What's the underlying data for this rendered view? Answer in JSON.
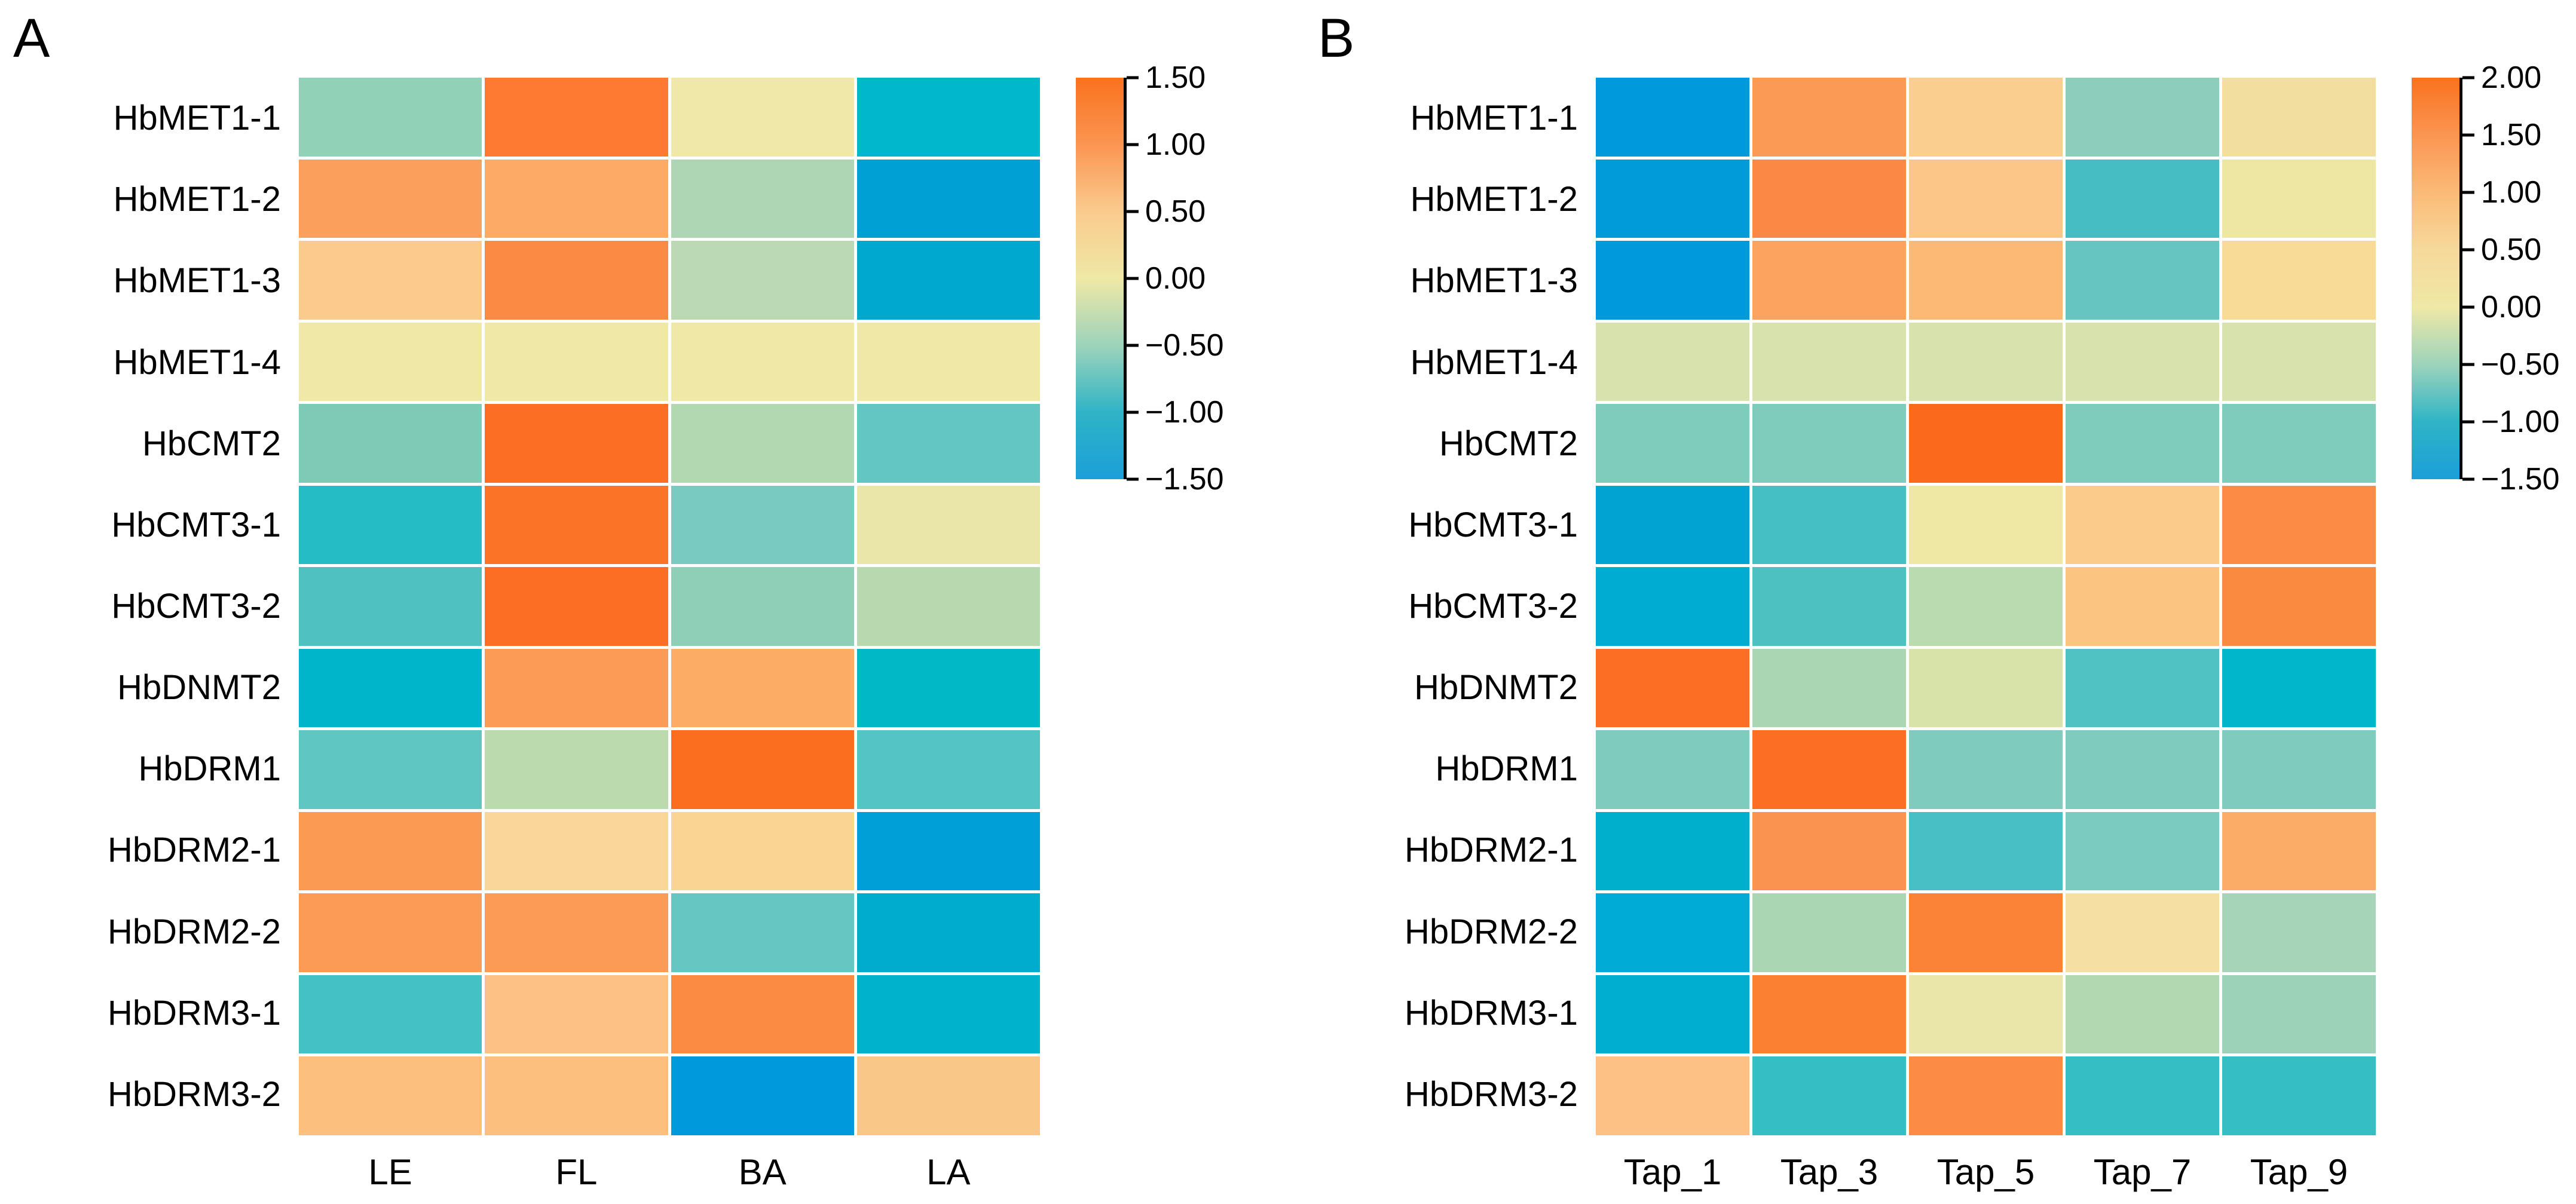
{
  "figure_type": "heatmap-figure",
  "chart_data": [
    {
      "type": "heatmap",
      "panel_letter": "A",
      "x": [
        "LE",
        "FL",
        "BA",
        "LA"
      ],
      "y": [
        "HbMET1-1",
        "HbMET1-2",
        "HbMET1-3",
        "HbMET1-4",
        "HbCMT2",
        "HbCMT3-1",
        "HbCMT3-2",
        "HbDNMT2",
        "HbDRM1",
        "HbDRM2-1",
        "HbDRM2-2",
        "HbDRM3-1",
        "HbDRM3-2"
      ],
      "values": [
        [
          -0.55,
          1.4,
          0.02,
          -1.0
        ],
        [
          0.9,
          0.8,
          -0.45,
          -1.3
        ],
        [
          0.5,
          1.15,
          -0.35,
          -1.2
        ],
        [
          0.0,
          0.0,
          0.0,
          0.0
        ],
        [
          -0.65,
          1.45,
          -0.4,
          -0.8
        ],
        [
          -0.95,
          1.45,
          -0.7,
          -0.05
        ],
        [
          -0.85,
          1.45,
          -0.55,
          -0.4
        ],
        [
          -1.05,
          0.95,
          0.85,
          -1.0
        ],
        [
          -0.8,
          -0.35,
          1.45,
          -0.8
        ],
        [
          0.95,
          0.45,
          0.45,
          -1.3
        ],
        [
          0.95,
          0.95,
          -0.8,
          -1.15
        ],
        [
          -0.9,
          0.6,
          1.15,
          -1.1
        ],
        [
          0.6,
          0.6,
          -1.4,
          0.55
        ]
      ],
      "cell_colors": [
        [
          "#90D1B8",
          "#FD7A30",
          "#F0E8A8",
          "#00B7CB"
        ],
        [
          "#FBA05C",
          "#FCAA66",
          "#AED6B5",
          "#009FD4"
        ],
        [
          "#FBCA8C",
          "#FB8A45",
          "#BBDAB3",
          "#00A8D0"
        ],
        [
          "#EFE8A6",
          "#EFE8A6",
          "#EFE8A6",
          "#EFE8A6"
        ],
        [
          "#7ECAB7",
          "#FB6E23",
          "#B2D8B2",
          "#62C6C3"
        ],
        [
          "#25BCC5",
          "#FB7327",
          "#77CBC0",
          "#E9E6A7"
        ],
        [
          "#4FC1C0",
          "#FB6E23",
          "#8FCFB8",
          "#B7D9B0"
        ],
        [
          "#00B5C8",
          "#FB9B55",
          "#FCAC64",
          "#00B8C6"
        ],
        [
          "#5FC6C2",
          "#BBDBAE",
          "#FB6E1F",
          "#55C4C4"
        ],
        [
          "#FB9A53",
          "#F9D79A",
          "#F9D492",
          "#009FD8"
        ],
        [
          "#FB9B55",
          "#FB9B55",
          "#66C7C2",
          "#00ACCE"
        ],
        [
          "#44C1C4",
          "#FCC183",
          "#FB8B43",
          "#00B2CB"
        ],
        [
          "#FCBF7E",
          "#FCBF7E",
          "#0099DB",
          "#F9C886"
        ]
      ],
      "vmin": -1.5,
      "vmax": 1.5,
      "colorbar_ticks": [
        "1.50",
        "1.00",
        "0.50",
        "0.00",
        "−0.50",
        "−1.00",
        "−1.50"
      ],
      "colorbar_stops": [
        {
          "pos": 0.0,
          "color": "#F9721E"
        },
        {
          "pos": 0.167,
          "color": "#FB9552"
        },
        {
          "pos": 0.333,
          "color": "#FACB8D"
        },
        {
          "pos": 0.5,
          "color": "#EFE8A6"
        },
        {
          "pos": 0.667,
          "color": "#9DD3BB"
        },
        {
          "pos": 0.833,
          "color": "#2FB4C6"
        },
        {
          "pos": 1.0,
          "color": "#1C9ED9"
        }
      ],
      "grid": false,
      "legend_position": "right"
    },
    {
      "type": "heatmap",
      "panel_letter": "B",
      "x": [
        "Tap_1",
        "Tap_3",
        "Tap_5",
        "Tap_7",
        "Tap_9"
      ],
      "y": [
        "HbMET1-1",
        "HbMET1-2",
        "HbMET1-3",
        "HbMET1-4",
        "HbCMT2",
        "HbCMT3-1",
        "HbCMT3-2",
        "HbDNMT2",
        "HbDRM1",
        "HbDRM2-1",
        "HbDRM2-2",
        "HbDRM3-1",
        "HbDRM3-2"
      ],
      "values": [
        [
          -1.35,
          1.3,
          0.7,
          -0.55,
          0.35
        ],
        [
          -1.3,
          1.5,
          0.85,
          -0.85,
          0.1
        ],
        [
          -1.35,
          1.2,
          1.0,
          -0.7,
          0.5
        ],
        [
          -0.25,
          -0.25,
          -0.25,
          -0.25,
          -0.25
        ],
        [
          -0.6,
          -0.6,
          1.95,
          -0.6,
          -0.6
        ],
        [
          -1.2,
          -0.85,
          0.05,
          0.75,
          1.45
        ],
        [
          -1.15,
          -0.8,
          -0.35,
          0.85,
          1.45
        ],
        [
          1.9,
          -0.45,
          -0.2,
          -0.8,
          -1.05
        ],
        [
          -0.6,
          1.9,
          -0.6,
          -0.6,
          -0.6
        ],
        [
          -1.1,
          1.35,
          -0.85,
          -0.6,
          1.1
        ],
        [
          -1.15,
          -0.45,
          1.6,
          0.4,
          -0.5
        ],
        [
          -1.1,
          1.7,
          0.05,
          -0.4,
          -0.5
        ],
        [
          0.85,
          -0.95,
          1.5,
          -0.95,
          -0.95
        ]
      ],
      "cell_colors": [
        [
          "#0099DC",
          "#FB9A55",
          "#F9CE8E",
          "#8BCEBB",
          "#F2DF9F"
        ],
        [
          "#009BD8",
          "#FB8845",
          "#FBC687",
          "#45BDC2",
          "#EEE7A4"
        ],
        [
          "#0099DC",
          "#FBA45F",
          "#FBB975",
          "#66C5BE",
          "#F8DB96"
        ],
        [
          "#D7E2AD",
          "#D7E2AD",
          "#D7E2AD",
          "#D7E2AD",
          "#D7E2AD"
        ],
        [
          "#7FCBBC",
          "#7FCBBC",
          "#FB6A1C",
          "#7FCBBC",
          "#7FCBBC"
        ],
        [
          "#00A3D2",
          "#45BFC2",
          "#EEE8A4",
          "#FBCB89",
          "#FB8B45"
        ],
        [
          "#00ACD1",
          "#4DC0C2",
          "#BADBAF",
          "#FBC581",
          "#FB8A41"
        ],
        [
          "#FB6E23",
          "#AAD6B3",
          "#D7E3A9",
          "#51C2C4",
          "#00B6C8"
        ],
        [
          "#7FCBBE",
          "#FB6E23",
          "#7FCBBE",
          "#7FCBBE",
          "#7FCBBE"
        ],
        [
          "#00AFCB",
          "#FB9350",
          "#48BFC4",
          "#7CCBC0",
          "#FBAC66"
        ],
        [
          "#00ACD6",
          "#ABD6B4",
          "#FB8336",
          "#F5DFA2",
          "#A5D4B8"
        ],
        [
          "#00AFD0",
          "#FB8032",
          "#EAE6A8",
          "#B2D8B2",
          "#9CD3B8"
        ],
        [
          "#FCC183",
          "#35BEC4",
          "#FB8B45",
          "#35BEC4",
          "#35BEC4"
        ]
      ],
      "vmin": -1.5,
      "vmax": 2.0,
      "colorbar_ticks": [
        "2.00",
        "1.50",
        "1.00",
        "0.50",
        "0.00",
        "−0.50",
        "−1.00",
        "−1.50"
      ],
      "colorbar_stops": [
        {
          "pos": 0.0,
          "color": "#F9721E"
        },
        {
          "pos": 0.143,
          "color": "#FB9552"
        },
        {
          "pos": 0.286,
          "color": "#FBBA77"
        },
        {
          "pos": 0.429,
          "color": "#F6D99B"
        },
        {
          "pos": 0.571,
          "color": "#EFE8A6"
        },
        {
          "pos": 0.714,
          "color": "#9DD3BB"
        },
        {
          "pos": 0.857,
          "color": "#2FB4C6"
        },
        {
          "pos": 1.0,
          "color": "#1C9ED9"
        }
      ],
      "grid": false,
      "legend_position": "right"
    }
  ]
}
